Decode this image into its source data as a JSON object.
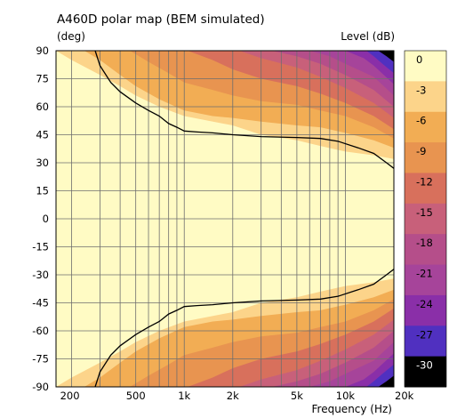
{
  "chart_data": {
    "type": "heatmap",
    "title": "A460D polar map (BEM simulated)",
    "ylabel": "(deg)",
    "xlabel": "Frequency  (Hz)",
    "legend_title": "Level  (dB)",
    "x_scale": "log",
    "xlim": [
      160,
      20000
    ],
    "ylim": [
      -90,
      90
    ],
    "grid": true,
    "x_ticks": [
      {
        "value": 200,
        "label": "200"
      },
      {
        "value": 500,
        "label": "500"
      },
      {
        "value": 1000,
        "label": "1k"
      },
      {
        "value": 2000,
        "label": "2k"
      },
      {
        "value": 5000,
        "label": "5k"
      },
      {
        "value": 10000,
        "label": "10k"
      },
      {
        "value": 20000,
        "label": "20k"
      }
    ],
    "x_minor_grid": [
      300,
      400,
      600,
      700,
      800,
      900,
      3000,
      4000,
      6000,
      7000,
      8000,
      9000
    ],
    "y_ticks": [
      90,
      75,
      60,
      45,
      30,
      15,
      0,
      -15,
      -30,
      -45,
      -60,
      -75,
      -90
    ],
    "colorbar": [
      {
        "label": "0",
        "color": "#fffbc4"
      },
      {
        "label": "-3",
        "color": "#fcd48a"
      },
      {
        "label": "-6",
        "color": "#f2ad54"
      },
      {
        "label": "-9",
        "color": "#e89450"
      },
      {
        "label": "-12",
        "color": "#d8705c"
      },
      {
        "label": "-15",
        "color": "#c8607a"
      },
      {
        "label": "-18",
        "color": "#b54e8a"
      },
      {
        "label": "-21",
        "color": "#a6449a"
      },
      {
        "label": "-24",
        "color": "#8a2fa8"
      },
      {
        "label": "-27",
        "color": "#5030c0"
      },
      {
        "label": "-30",
        "color": "#000000"
      }
    ],
    "contours": [
      {
        "level": -3,
        "color": "#fcd48a",
        "angle": [
          [
            160,
            90
          ],
          [
            200,
            85
          ],
          [
            300,
            77
          ],
          [
            400,
            71
          ],
          [
            500,
            66
          ],
          [
            700,
            60
          ],
          [
            1000,
            55
          ],
          [
            2000,
            50
          ],
          [
            3000,
            45
          ],
          [
            5000,
            42
          ],
          [
            7000,
            39
          ],
          [
            10000,
            36
          ],
          [
            15000,
            34
          ],
          [
            20000,
            32
          ]
        ]
      },
      {
        "level": -6,
        "color": "#f2ad54",
        "angle": [
          [
            240,
            90
          ],
          [
            300,
            85
          ],
          [
            400,
            77
          ],
          [
            500,
            71
          ],
          [
            700,
            64
          ],
          [
            1000,
            58
          ],
          [
            1500,
            55
          ],
          [
            2000,
            54
          ],
          [
            3000,
            52
          ],
          [
            5000,
            50
          ],
          [
            7000,
            49
          ],
          [
            10000,
            46
          ],
          [
            15000,
            42
          ],
          [
            20000,
            38
          ]
        ]
      },
      {
        "level": -9,
        "color": "#e89450",
        "angle": [
          [
            460,
            90
          ],
          [
            600,
            84
          ],
          [
            800,
            78
          ],
          [
            1000,
            73
          ],
          [
            1500,
            69
          ],
          [
            2000,
            66
          ],
          [
            3000,
            63
          ],
          [
            5000,
            61
          ],
          [
            7000,
            58
          ],
          [
            10000,
            55
          ],
          [
            15000,
            49
          ],
          [
            20000,
            43
          ]
        ]
      },
      {
        "level": -12,
        "color": "#d8705c",
        "angle": [
          [
            1050,
            90
          ],
          [
            1500,
            85
          ],
          [
            2000,
            80
          ],
          [
            3000,
            75
          ],
          [
            5000,
            71
          ],
          [
            7000,
            67
          ],
          [
            10000,
            62
          ],
          [
            15000,
            55
          ],
          [
            20000,
            48
          ]
        ]
      },
      {
        "level": -15,
        "color": "#c8607a",
        "angle": [
          [
            2200,
            90
          ],
          [
            3000,
            86
          ],
          [
            5000,
            81
          ],
          [
            7000,
            76
          ],
          [
            10000,
            70
          ],
          [
            15000,
            62
          ],
          [
            20000,
            54
          ]
        ]
      },
      {
        "level": -18,
        "color": "#b54e8a",
        "angle": [
          [
            3500,
            90
          ],
          [
            5000,
            87
          ],
          [
            7000,
            83
          ],
          [
            10000,
            77
          ],
          [
            15000,
            69
          ],
          [
            20000,
            60
          ]
        ]
      },
      {
        "level": -21,
        "color": "#a6449a",
        "angle": [
          [
            6000,
            90
          ],
          [
            8000,
            87
          ],
          [
            10000,
            83
          ],
          [
            15000,
            76
          ],
          [
            20000,
            66
          ]
        ]
      },
      {
        "level": -24,
        "color": "#8a2fa8",
        "angle": [
          [
            10000,
            90
          ],
          [
            13000,
            86
          ],
          [
            15000,
            82
          ],
          [
            20000,
            72
          ]
        ]
      },
      {
        "level": -27,
        "color": "#5030c0",
        "angle": [
          [
            13500,
            90
          ],
          [
            15000,
            87
          ],
          [
            17000,
            83
          ],
          [
            20000,
            78
          ]
        ]
      },
      {
        "level": -30,
        "color": "#000000",
        "angle": [
          [
            16000,
            90
          ],
          [
            18000,
            87
          ],
          [
            20000,
            84
          ]
        ]
      }
    ],
    "series": [
      {
        "name": "-6 dB contour",
        "color": "#000000",
        "points": [
          [
            280,
            90
          ],
          [
            300,
            82
          ],
          [
            350,
            73
          ],
          [
            400,
            68
          ],
          [
            500,
            62
          ],
          [
            600,
            58
          ],
          [
            700,
            55
          ],
          [
            800,
            51
          ],
          [
            900,
            49
          ],
          [
            1000,
            47
          ],
          [
            1200,
            46.5
          ],
          [
            1500,
            46
          ],
          [
            2000,
            45
          ],
          [
            3000,
            44
          ],
          [
            5000,
            43.5
          ],
          [
            7000,
            43
          ],
          [
            9000,
            41.5
          ],
          [
            12000,
            38
          ],
          [
            15000,
            35
          ],
          [
            18000,
            30
          ],
          [
            20000,
            27
          ]
        ]
      }
    ]
  }
}
